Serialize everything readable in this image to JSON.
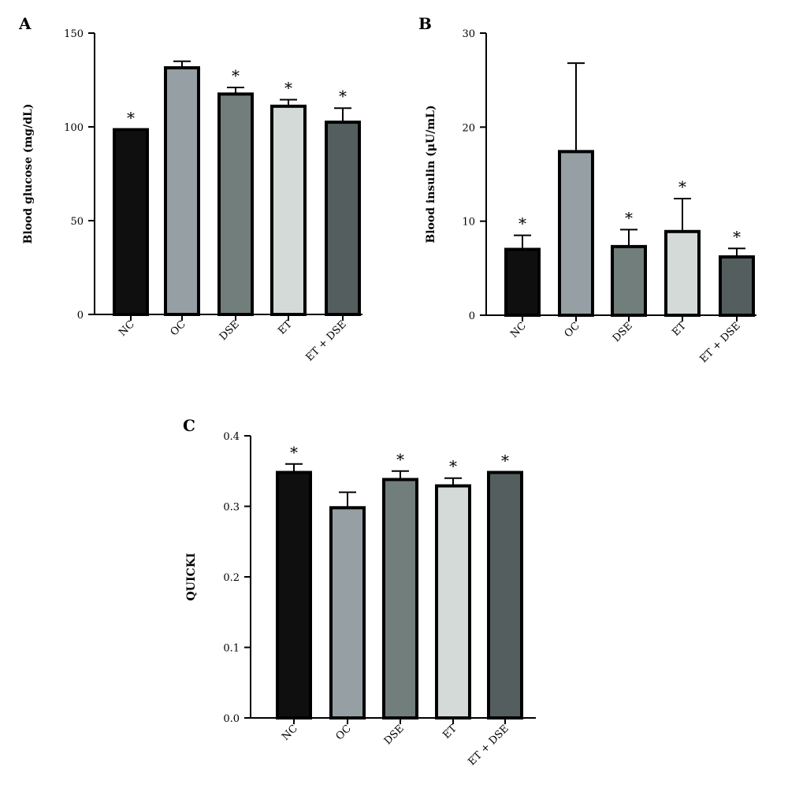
{
  "colors": {
    "NC": "#0f0f0f",
    "OC": "#969fa3",
    "DSE": "#727e7b",
    "ET": "#d3dad7",
    "ET + DSE": "#555e5f",
    "outline": "#000000"
  },
  "chart_data": [
    {
      "panel": "A",
      "type": "bar",
      "ylabel": "Blood glucose (mg/dL)",
      "categories": [
        "NC",
        "OC",
        "DSE",
        "ET",
        "ET + DSE"
      ],
      "values": [
        98.5,
        131.5,
        117.5,
        111,
        102.5
      ],
      "error": [
        0,
        3.5,
        3.5,
        3.5,
        7.5
      ],
      "significance": [
        "*",
        "",
        "*",
        "*",
        "*"
      ],
      "ylim": [
        0,
        150
      ],
      "yticks": [
        0,
        50,
        100,
        150
      ],
      "ytick_labels": [
        "0",
        "50",
        "100",
        "150"
      ],
      "grid": false
    },
    {
      "panel": "B",
      "type": "bar",
      "ylabel": "Blood insulin (μU/mL)",
      "categories": [
        "NC",
        "OC",
        "DSE",
        "ET",
        "ET + DSE"
      ],
      "values": [
        7,
        17.4,
        7.3,
        8.9,
        6.2
      ],
      "error": [
        1.5,
        9.4,
        1.8,
        3.5,
        0.9
      ],
      "significance": [
        "*",
        "",
        "*",
        "*",
        "*"
      ],
      "ylim": [
        0,
        30
      ],
      "yticks": [
        0,
        10,
        20,
        30
      ],
      "ytick_labels": [
        "0",
        "10",
        "20",
        "30"
      ],
      "grid": false
    },
    {
      "panel": "C",
      "type": "bar",
      "ylabel": "QUICKI",
      "categories": [
        "NC",
        "OC",
        "DSE",
        "ET",
        "ET + DSE"
      ],
      "values": [
        0.348,
        0.298,
        0.338,
        0.329,
        0.348
      ],
      "error": [
        0.012,
        0.022,
        0.012,
        0.011,
        0
      ],
      "significance": [
        "*",
        "",
        "*",
        "*",
        "*"
      ],
      "ylim": [
        0,
        0.4
      ],
      "yticks": [
        0,
        0.1,
        0.2,
        0.3,
        0.4
      ],
      "ytick_labels": [
        "0.0",
        "0.1",
        "0.2",
        "0.3",
        "0.4"
      ],
      "grid": false
    }
  ]
}
